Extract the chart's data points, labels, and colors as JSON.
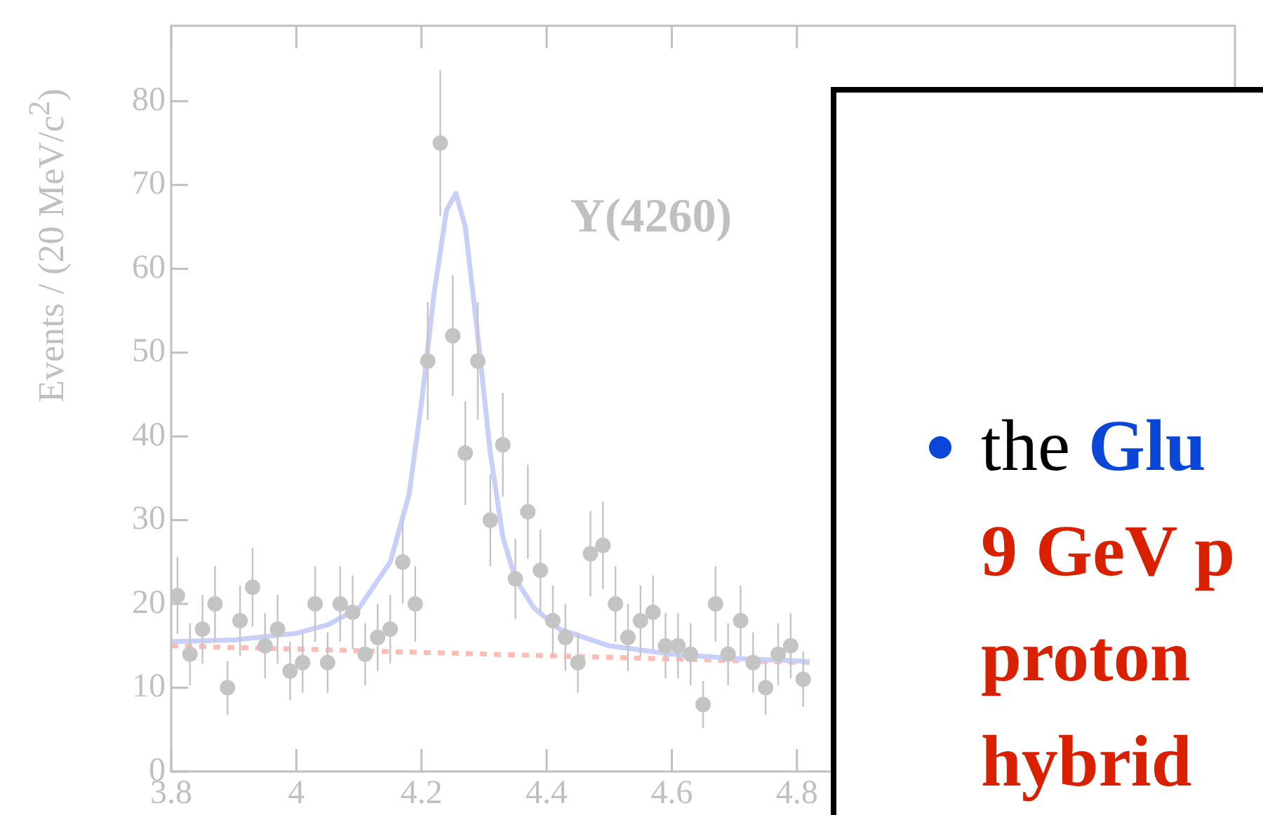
{
  "chart_data": {
    "type": "scatter",
    "ylabel": "Events / (20 MeV/c$^{2}$)",
    "xlim": [
      3.8,
      5.5
    ],
    "xticks": [
      3.8,
      4,
      4.2,
      4.4,
      4.6,
      4.8
    ],
    "ylim": [
      0,
      89
    ],
    "yticks": [
      0,
      10,
      20,
      30,
      40,
      50,
      60,
      70,
      80
    ],
    "grid": false,
    "legend": false,
    "annotations": [
      "Y(4260)",
      "the",
      "Glu",
      "9 GeV p",
      "proton",
      "hybrid"
    ],
    "series": [
      {
        "marker": "circle",
        "color": "#c4c4c4",
        "x": [
          3.81,
          3.83,
          3.85,
          3.87,
          3.89,
          3.91,
          3.93,
          3.95,
          3.97,
          3.99,
          4.01,
          4.03,
          4.05,
          4.07,
          4.09,
          4.11,
          4.13,
          4.15,
          4.17,
          4.19,
          4.21,
          4.23,
          4.25,
          4.27,
          4.29,
          4.31,
          4.33,
          4.35,
          4.37,
          4.39,
          4.41,
          4.43,
          4.45,
          4.47,
          4.49,
          4.51,
          4.53,
          4.55,
          4.57,
          4.59,
          4.61,
          4.63,
          4.65,
          4.67,
          4.69,
          4.71,
          4.73,
          4.75,
          4.77,
          4.79,
          4.81
        ],
        "values": [
          21,
          14,
          17,
          20,
          10,
          18,
          22,
          15,
          17,
          12,
          13,
          20,
          13,
          20,
          19,
          14,
          16,
          17,
          25,
          20,
          49,
          75,
          52,
          38,
          49,
          30,
          39,
          23,
          31,
          24,
          18,
          16,
          13,
          26,
          27,
          20,
          16,
          18,
          19,
          15,
          15,
          14,
          8,
          20,
          14,
          18,
          13,
          10,
          14,
          15,
          11
        ],
        "errors": [
          4.6,
          3.7,
          4.1,
          4.5,
          3.2,
          4.2,
          4.7,
          3.9,
          4.1,
          3.5,
          3.6,
          4.5,
          3.6,
          4.5,
          4.4,
          3.7,
          4,
          4.1,
          5,
          4.5,
          7,
          8.7,
          7.2,
          6.2,
          7,
          5.5,
          6.2,
          4.8,
          5.6,
          4.9,
          4.2,
          4,
          3.6,
          5.1,
          5.2,
          4.5,
          4,
          4.2,
          4.4,
          3.9,
          3.9,
          3.7,
          2.8,
          4.5,
          3.7,
          4.2,
          3.6,
          3.2,
          3.7,
          3.9,
          3.3
        ]
      },
      {
        "type": "line",
        "marker": "none",
        "color": "#c8d0fa",
        "x": [
          3.8,
          3.9,
          4.0,
          4.05,
          4.1,
          4.15,
          4.18,
          4.2,
          4.22,
          4.24,
          4.255,
          4.27,
          4.29,
          4.31,
          4.33,
          4.35,
          4.38,
          4.42,
          4.5,
          4.6,
          4.7,
          4.8,
          4.82
        ],
        "values": [
          15.5,
          15.7,
          16.5,
          17.5,
          19.5,
          25,
          33,
          44,
          57,
          67,
          69,
          65,
          52,
          38,
          28,
          23,
          19.5,
          17,
          15,
          14,
          13.5,
          13.2,
          13.1
        ]
      },
      {
        "type": "line",
        "marker": "none",
        "line_style": "dashed",
        "color": "#fdbcb4",
        "x": [
          3.8,
          4.82
        ],
        "values": [
          15,
          13
        ]
      }
    ]
  }
}
